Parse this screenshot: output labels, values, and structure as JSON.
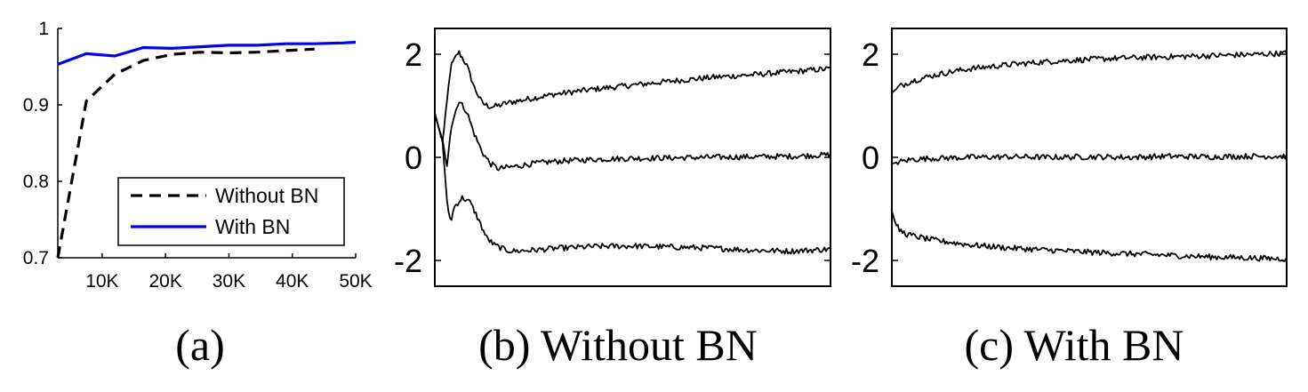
{
  "chart_data": [
    {
      "type": "line",
      "caption": "(a)",
      "xlim": [
        3000,
        50000
      ],
      "ylim": [
        0.7,
        1.0
      ],
      "x_ticks": [
        10000,
        20000,
        30000,
        40000,
        50000
      ],
      "x_tick_labels": [
        "10K",
        "20K",
        "30K",
        "40K",
        "50K"
      ],
      "y_ticks": [
        0.7,
        0.8,
        0.9,
        1.0
      ],
      "y_tick_labels": [
        "0.7",
        "0.8",
        "0.9",
        "1"
      ],
      "axes_box": "left-bottom",
      "legend_placement": "lower-right",
      "series": [
        {
          "name": "Without BN",
          "color": "#000000",
          "style": "dashed",
          "x": [
            3000,
            7500,
            12000,
            16500,
            21000,
            25500,
            30000,
            34500,
            39000,
            43500
          ],
          "y": [
            0.7,
            0.905,
            0.94,
            0.958,
            0.966,
            0.969,
            0.968,
            0.969,
            0.971,
            0.973
          ]
        },
        {
          "name": "With BN",
          "color": "#0000ee",
          "style": "solid",
          "x": [
            3000,
            7500,
            12000,
            16500,
            21000,
            25500,
            30000,
            34500,
            39000,
            43500,
            48000,
            50000
          ],
          "y": [
            0.953,
            0.967,
            0.964,
            0.975,
            0.974,
            0.976,
            0.978,
            0.978,
            0.98,
            0.98,
            0.981,
            0.982
          ]
        }
      ]
    },
    {
      "type": "line",
      "caption": "(b) Without BN",
      "ylim": [
        -2.5,
        2.5
      ],
      "y_ticks": [
        -2,
        0,
        2
      ],
      "y_tick_labels": [
        "-2",
        "0",
        "2"
      ],
      "axes_box": "full",
      "series": [
        {
          "color": "#000000",
          "x": [
            0,
            2,
            4,
            6,
            8,
            10,
            12,
            14,
            16,
            18,
            20,
            25,
            30,
            40,
            50,
            60,
            70,
            80,
            90,
            100
          ],
          "y": [
            0.85,
            0.3,
            1.75,
            2.05,
            1.8,
            1.35,
            1.05,
            0.98,
            1.0,
            1.05,
            1.08,
            1.15,
            1.22,
            1.32,
            1.4,
            1.48,
            1.55,
            1.6,
            1.66,
            1.72
          ]
        },
        {
          "color": "#000000",
          "x": [
            0,
            2,
            3,
            4,
            6,
            8,
            10,
            12,
            14,
            16,
            18,
            20,
            25,
            30,
            40,
            50,
            60,
            70,
            80,
            90,
            100
          ],
          "y": [
            0.85,
            0.3,
            -0.2,
            0.55,
            1.1,
            0.9,
            0.45,
            0.1,
            -0.12,
            -0.22,
            -0.2,
            -0.18,
            -0.12,
            -0.08,
            -0.04,
            -0.02,
            -0.01,
            0.0,
            0.01,
            0.02,
            0.05
          ]
        },
        {
          "color": "#000000",
          "x": [
            0,
            2,
            3,
            4,
            5,
            7,
            9,
            11,
            13,
            15,
            18,
            20,
            25,
            30,
            40,
            50,
            60,
            70,
            80,
            90,
            100
          ],
          "y": [
            0.85,
            0.3,
            -0.85,
            -1.25,
            -0.95,
            -0.78,
            -0.88,
            -1.2,
            -1.55,
            -1.7,
            -1.8,
            -1.82,
            -1.8,
            -1.77,
            -1.73,
            -1.72,
            -1.74,
            -1.76,
            -1.8,
            -1.82,
            -1.78
          ]
        }
      ]
    },
    {
      "type": "line",
      "caption": "(c) With BN",
      "ylim": [
        -2.5,
        2.5
      ],
      "y_ticks": [
        -2,
        0,
        2
      ],
      "y_tick_labels": [
        "-2",
        "0",
        "2"
      ],
      "axes_box": "full",
      "series": [
        {
          "color": "#000000",
          "x": [
            0,
            2,
            5,
            10,
            15,
            20,
            30,
            40,
            50,
            60,
            70,
            80,
            90,
            100
          ],
          "y": [
            1.25,
            1.38,
            1.48,
            1.58,
            1.66,
            1.72,
            1.8,
            1.86,
            1.9,
            1.93,
            1.95,
            1.97,
            1.99,
            2.02
          ]
        },
        {
          "color": "#000000",
          "x": [
            0,
            5,
            10,
            20,
            30,
            40,
            50,
            60,
            70,
            80,
            90,
            100
          ],
          "y": [
            -0.12,
            -0.04,
            -0.02,
            0.0,
            0.01,
            0.0,
            0.01,
            0.0,
            0.02,
            0.01,
            0.02,
            0.02
          ]
        },
        {
          "color": "#000000",
          "x": [
            0,
            1,
            2,
            4,
            7,
            10,
            15,
            20,
            30,
            40,
            50,
            60,
            70,
            80,
            90,
            100
          ],
          "y": [
            -1.05,
            -1.3,
            -1.42,
            -1.5,
            -1.55,
            -1.6,
            -1.65,
            -1.7,
            -1.76,
            -1.8,
            -1.84,
            -1.87,
            -1.9,
            -1.93,
            -1.95,
            -1.97
          ]
        }
      ]
    }
  ]
}
